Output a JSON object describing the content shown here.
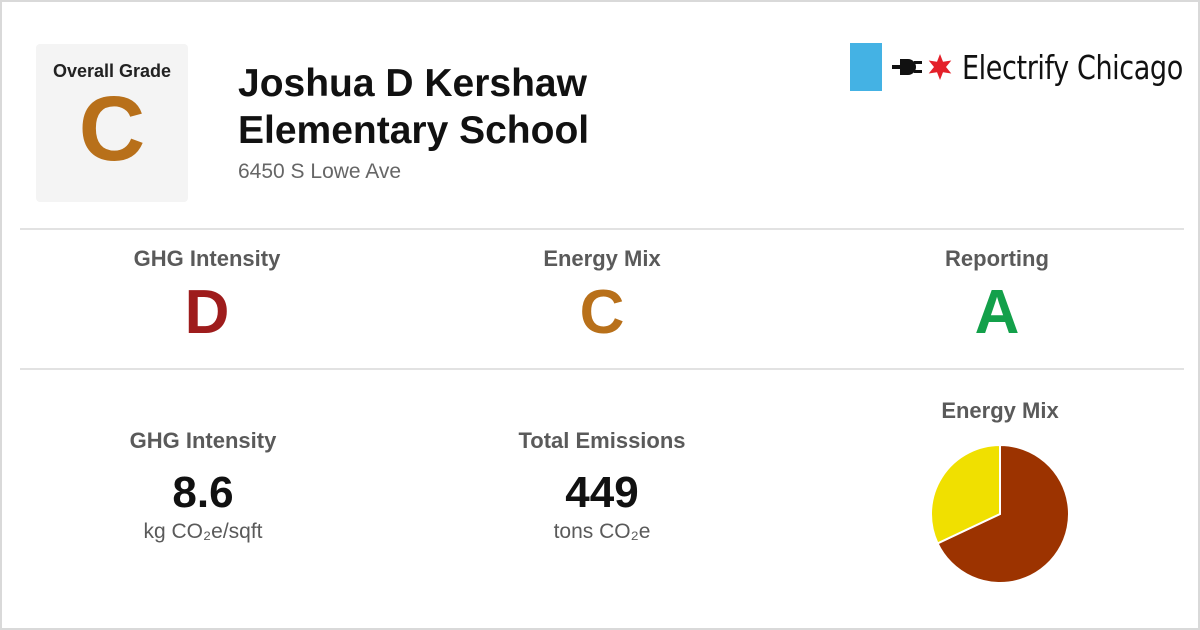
{
  "overall": {
    "label": "Overall Grade",
    "grade": "C",
    "grade_color": "#b8701a"
  },
  "building": {
    "title_line1": "Joshua D Kershaw",
    "title_line2": "Elementary School",
    "address": "6450 S Lowe Ave"
  },
  "brand": {
    "name": "Electrify Chicago",
    "flag_color": "#44b2e4",
    "star_color": "#e4202a"
  },
  "grades": [
    {
      "label": "GHG Intensity",
      "grade": "D",
      "color": "#9e1c1c"
    },
    {
      "label": "Energy Mix",
      "grade": "C",
      "color": "#b8701a"
    },
    {
      "label": "Reporting",
      "grade": "A",
      "color": "#13a04a"
    }
  ],
  "stats": [
    {
      "label": "GHG Intensity",
      "value": "8.6",
      "unit": "kg CO₂e/sqft"
    },
    {
      "label": "Total Emissions",
      "value": "449",
      "unit": "tons CO₂e"
    }
  ],
  "chart_data": {
    "type": "pie",
    "title": "Energy Mix",
    "slices": [
      {
        "value": 68,
        "color": "#9c3300"
      },
      {
        "value": 32,
        "color": "#f0e000"
      }
    ]
  }
}
